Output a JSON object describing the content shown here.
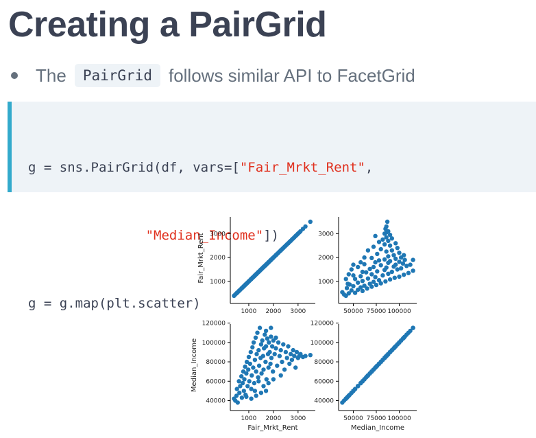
{
  "slide": {
    "title": "Creating a PairGrid",
    "bullet": {
      "prefix": "The",
      "code": "PairGrid",
      "suffix": "follows similar API to FacetGrid"
    },
    "code_lines": [
      [
        "g = sns.PairGrid(df, vars=[",
        "\"Fair_Mrkt_Rent\"",
        ","
      ],
      [
        "               ",
        "\"Median_Income\"",
        "])"
      ],
      [
        "g = g.map(plt.scatter)",
        "",
        ""
      ]
    ]
  },
  "chart_data": {
    "type": "scatter",
    "point_color": "#1f77b4",
    "variables": [
      "Fair_Mrkt_Rent",
      "Median_Income"
    ],
    "axes": {
      "Fair_Mrkt_Rent": {
        "range": [
          250,
          3700
        ],
        "ticks": [
          1000,
          2000,
          3000
        ],
        "tick_labels": [
          "1000",
          "2000",
          "3000"
        ]
      },
      "Median_Income": {
        "range": [
          34000,
          119000
        ],
        "ticks": [
          40000,
          60000,
          80000,
          100000,
          120000
        ],
        "tick_labels": [
          "40000",
          "60000",
          "80000",
          "100000",
          "120000"
        ]
      },
      "Median_Income_x": {
        "range": [
          34000,
          119000
        ],
        "ticks": [
          50000,
          75000,
          100000
        ],
        "tick_labels": [
          "50000",
          "75000",
          "100000"
        ]
      }
    },
    "xlabels": [
      "Fair_Mrkt_Rent",
      "Median_Income"
    ],
    "ylabels": [
      "Fair_Mrkt_Rent",
      "Median_Income"
    ],
    "points": [
      [
        400,
        42000
      ],
      [
        450,
        40000
      ],
      [
        500,
        45000
      ],
      [
        520,
        52000
      ],
      [
        550,
        38000
      ],
      [
        600,
        60000
      ],
      [
        620,
        48000
      ],
      [
        650,
        55000
      ],
      [
        700,
        65000
      ],
      [
        720,
        43000
      ],
      [
        750,
        58000
      ],
      [
        780,
        70000
      ],
      [
        800,
        50000
      ],
      [
        820,
        62000
      ],
      [
        850,
        75000
      ],
      [
        870,
        46000
      ],
      [
        900,
        68000
      ],
      [
        920,
        80000
      ],
      [
        950,
        55000
      ],
      [
        980,
        72000
      ],
      [
        1000,
        85000
      ],
      [
        1020,
        60000
      ],
      [
        1050,
        78000
      ],
      [
        1080,
        90000
      ],
      [
        1100,
        52000
      ],
      [
        1120,
        66000
      ],
      [
        1150,
        95000
      ],
      [
        1180,
        74000
      ],
      [
        1200,
        100000
      ],
      [
        1220,
        58000
      ],
      [
        1250,
        82000
      ],
      [
        1280,
        105000
      ],
      [
        1300,
        70000
      ],
      [
        1320,
        88000
      ],
      [
        1350,
        110000
      ],
      [
        1380,
        64000
      ],
      [
        1400,
        92000
      ],
      [
        1420,
        76000
      ],
      [
        1450,
        115000
      ],
      [
        1480,
        84000
      ],
      [
        1500,
        98000
      ],
      [
        1520,
        68000
      ],
      [
        1550,
        102000
      ],
      [
        1580,
        86000
      ],
      [
        1600,
        72000
      ],
      [
        1620,
        94000
      ],
      [
        1650,
        108000
      ],
      [
        1680,
        80000
      ],
      [
        1700,
        96000
      ],
      [
        1720,
        62000
      ],
      [
        1750,
        104000
      ],
      [
        1780,
        88000
      ],
      [
        1800,
        74000
      ],
      [
        1820,
        100000
      ],
      [
        1850,
        90000
      ],
      [
        1880,
        78000
      ],
      [
        1900,
        106000
      ],
      [
        1920,
        84000
      ],
      [
        1950,
        96000
      ],
      [
        1980,
        70000
      ],
      [
        2000,
        102000
      ],
      [
        2050,
        88000
      ],
      [
        2100,
        94000
      ],
      [
        2150,
        76000
      ],
      [
        2200,
        100000
      ],
      [
        2250,
        86000
      ],
      [
        2300,
        92000
      ],
      [
        2350,
        80000
      ],
      [
        2400,
        98000
      ],
      [
        2450,
        72000
      ],
      [
        2500,
        90000
      ],
      [
        2550,
        84000
      ],
      [
        2600,
        96000
      ],
      [
        2650,
        78000
      ],
      [
        2700,
        88000
      ],
      [
        2750,
        82000
      ],
      [
        2800,
        92000
      ],
      [
        2850,
        86000
      ],
      [
        2900,
        74000
      ],
      [
        2950,
        90000
      ],
      [
        3000,
        84000
      ],
      [
        3050,
        86000
      ],
      [
        3100,
        88000
      ],
      [
        3200,
        85000
      ],
      [
        3300,
        86000
      ],
      [
        3500,
        87000
      ],
      [
        2100,
        105000
      ],
      [
        1900,
        115000
      ],
      [
        1700,
        112000
      ],
      [
        1400,
        60000
      ],
      [
        1300,
        45000
      ],
      [
        1100,
        42000
      ],
      [
        900,
        44000
      ],
      [
        1250,
        50000
      ],
      [
        1600,
        55000
      ],
      [
        1800,
        58000
      ],
      [
        2000,
        62000
      ],
      [
        2300,
        66000
      ],
      [
        1500,
        48000
      ],
      [
        1700,
        50000
      ]
    ]
  }
}
